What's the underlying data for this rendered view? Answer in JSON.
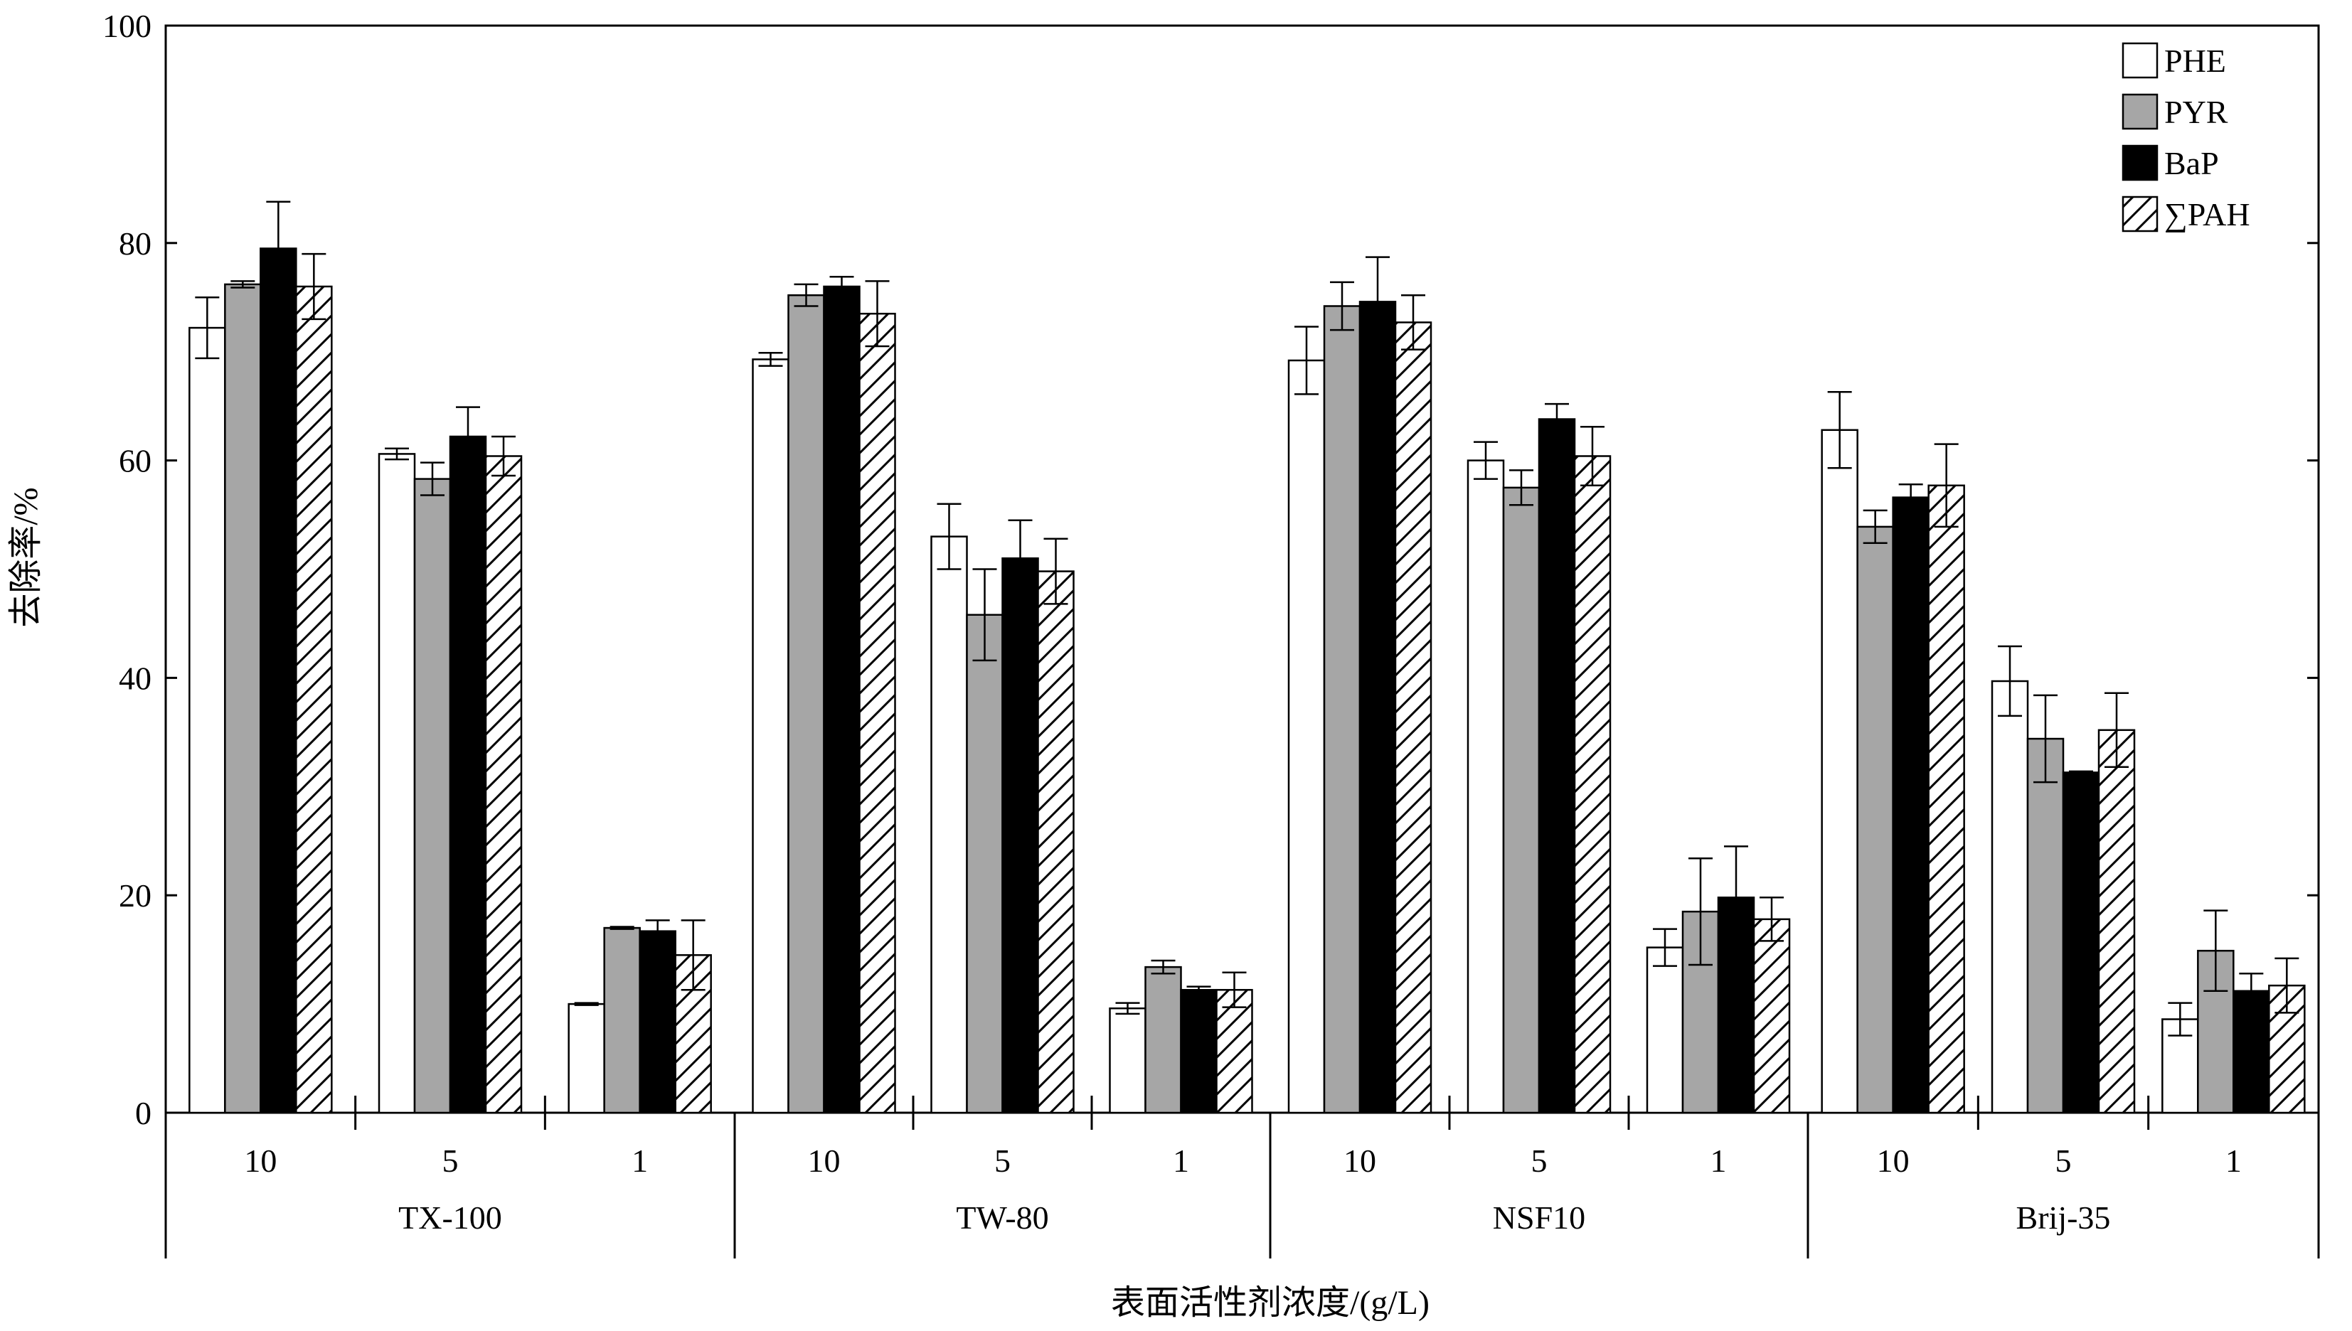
{
  "chart_data": {
    "type": "bar",
    "ylabel": "去除率/%",
    "xlabel": "表面活性剂浓度/(g/L)",
    "ylim": [
      0,
      100
    ],
    "yticks": [
      0,
      20,
      40,
      60,
      80,
      100
    ],
    "legend_position": "top-right",
    "groups": [
      {
        "name": "TX-100",
        "concentrations": [
          "10",
          "5",
          "1"
        ]
      },
      {
        "name": "TW-80",
        "concentrations": [
          "10",
          "5",
          "1"
        ]
      },
      {
        "name": "NSF10",
        "concentrations": [
          "10",
          "5",
          "1"
        ]
      },
      {
        "name": "Brij-35",
        "concentrations": [
          "10",
          "5",
          "1"
        ]
      }
    ],
    "series": [
      {
        "name": "PHE",
        "fill": "white",
        "values": [
          72.2,
          60.6,
          10.0,
          69.3,
          53.0,
          9.6,
          69.2,
          60.0,
          15.2,
          62.8,
          39.7,
          8.6
        ],
        "errors": [
          2.8,
          0.5,
          0.1,
          0.6,
          3.0,
          0.5,
          3.1,
          1.7,
          1.7,
          3.5,
          3.2,
          1.5
        ]
      },
      {
        "name": "PYR",
        "fill": "gray",
        "values": [
          76.2,
          58.3,
          17.0,
          75.2,
          45.8,
          13.4,
          74.2,
          57.5,
          18.5,
          53.9,
          34.4,
          14.9
        ],
        "errors": [
          0.3,
          1.5,
          0.1,
          1.0,
          4.2,
          0.6,
          2.2,
          1.6,
          4.9,
          1.5,
          4.0,
          3.7
        ]
      },
      {
        "name": "BaP",
        "fill": "black",
        "values": [
          79.5,
          62.2,
          16.7,
          76.0,
          51.0,
          11.3,
          74.6,
          63.8,
          19.8,
          56.6,
          31.3,
          11.2
        ],
        "errors": [
          4.3,
          2.7,
          1.0,
          0.9,
          3.5,
          0.3,
          4.1,
          1.4,
          4.7,
          1.2,
          0.1,
          1.6
        ]
      },
      {
        "name": "∑PAH",
        "fill": "hatch",
        "values": [
          76.0,
          60.4,
          14.5,
          73.5,
          49.8,
          11.3,
          72.7,
          60.4,
          17.8,
          57.7,
          35.2,
          11.7
        ],
        "errors": [
          3.0,
          1.8,
          3.2,
          3.0,
          3.0,
          1.6,
          2.5,
          2.7,
          2.0,
          3.8,
          3.4,
          2.5
        ]
      }
    ]
  }
}
